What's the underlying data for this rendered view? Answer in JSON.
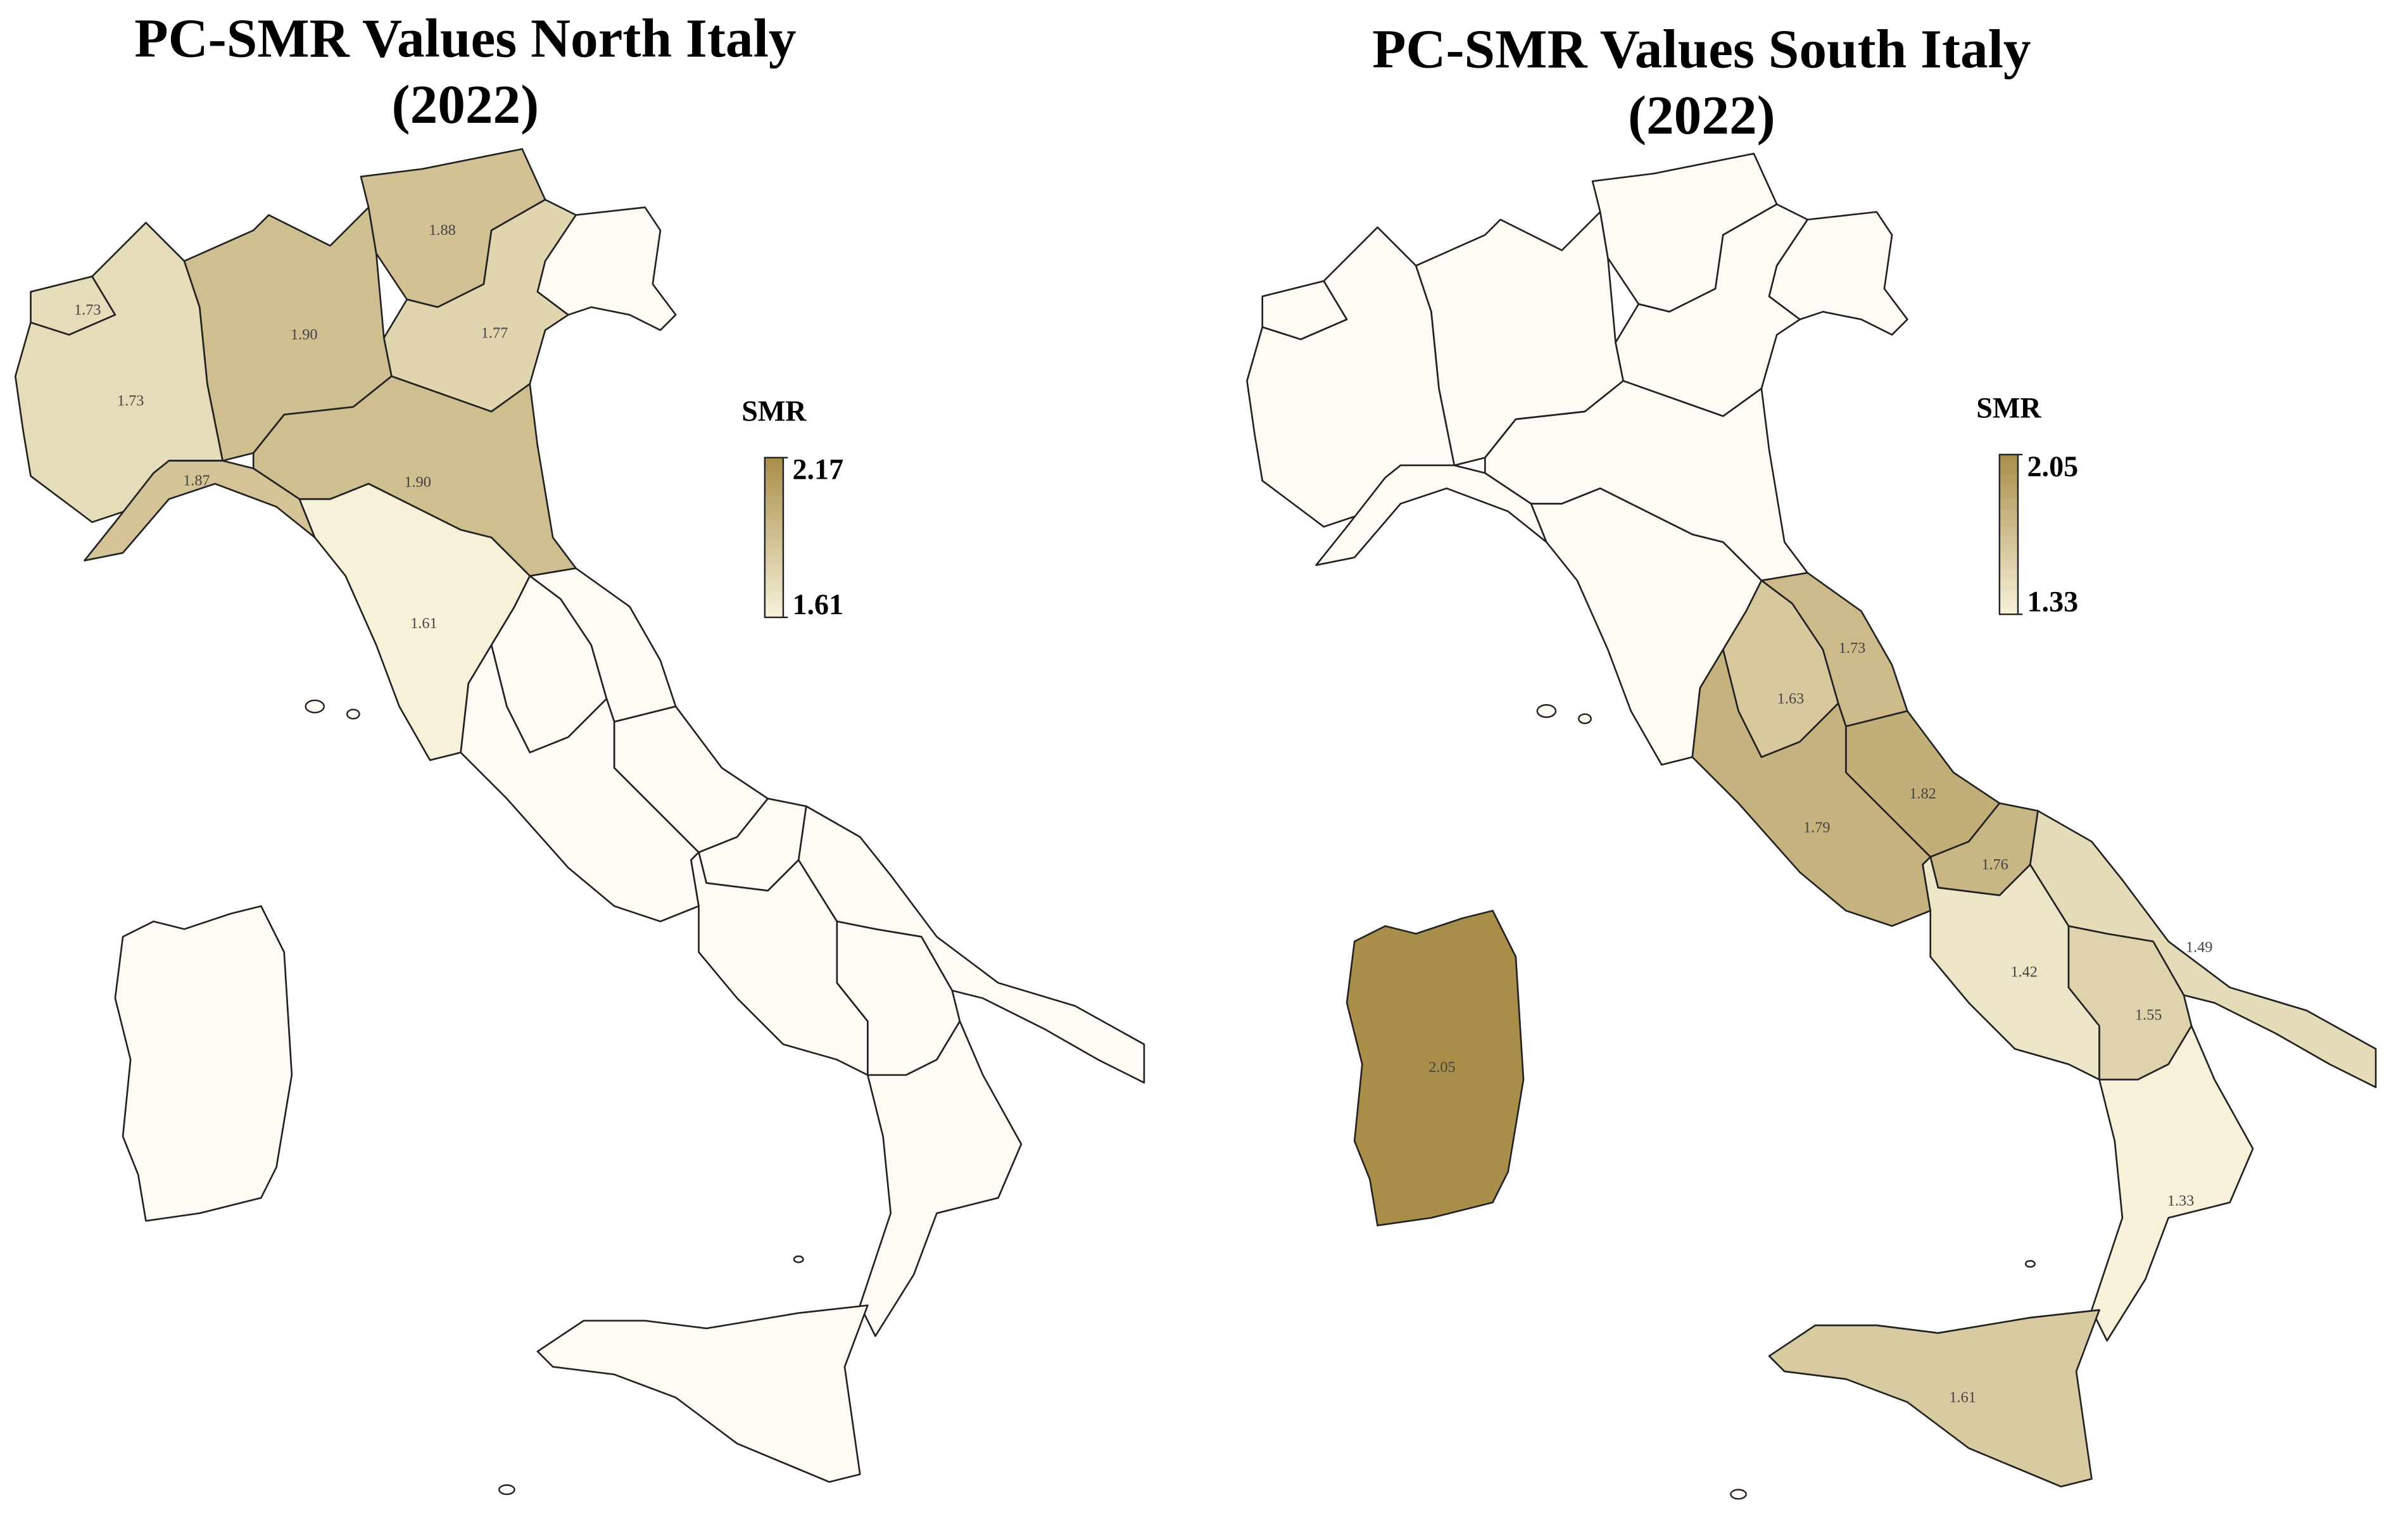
{
  "chart_data": [
    {
      "type": "choropleth",
      "title": "PC-SMR Values North Italy",
      "subtitle": "(2022)",
      "legend_title": "SMR",
      "colorlim": [
        1.61,
        2.17
      ],
      "colorticks": [
        2.17,
        1.61
      ],
      "colors": [
        "#f7f1d9",
        "#a98e4a"
      ],
      "missing_color": "#fffaf3",
      "values": [
        1.73,
        1.73,
        1.9,
        1.88,
        1.77,
        1.9,
        1.87,
        1.61
      ],
      "value_labels": [
        "1.73",
        "1.73",
        "1.90",
        "1.88",
        "1.77",
        "1.90",
        "1.87",
        "1.61"
      ]
    },
    {
      "type": "choropleth",
      "title": "PC-SMR Values South Italy",
      "subtitle": "(2022)",
      "legend_title": "SMR",
      "colorlim": [
        1.33,
        2.05
      ],
      "colorticks": [
        2.05,
        1.33
      ],
      "colors": [
        "#f7f1d9",
        "#a98e4a"
      ],
      "missing_color": "#fffaf3",
      "values": [
        1.73,
        1.63,
        1.82,
        1.79,
        1.76,
        1.42,
        1.49,
        1.55,
        1.33,
        1.61,
        2.05
      ],
      "value_labels": [
        "1.73",
        "1.63",
        "1.82",
        "1.79",
        "1.76",
        "1.42",
        "1.49",
        "1.55",
        "1.33",
        "1.61",
        "2.05"
      ]
    }
  ]
}
